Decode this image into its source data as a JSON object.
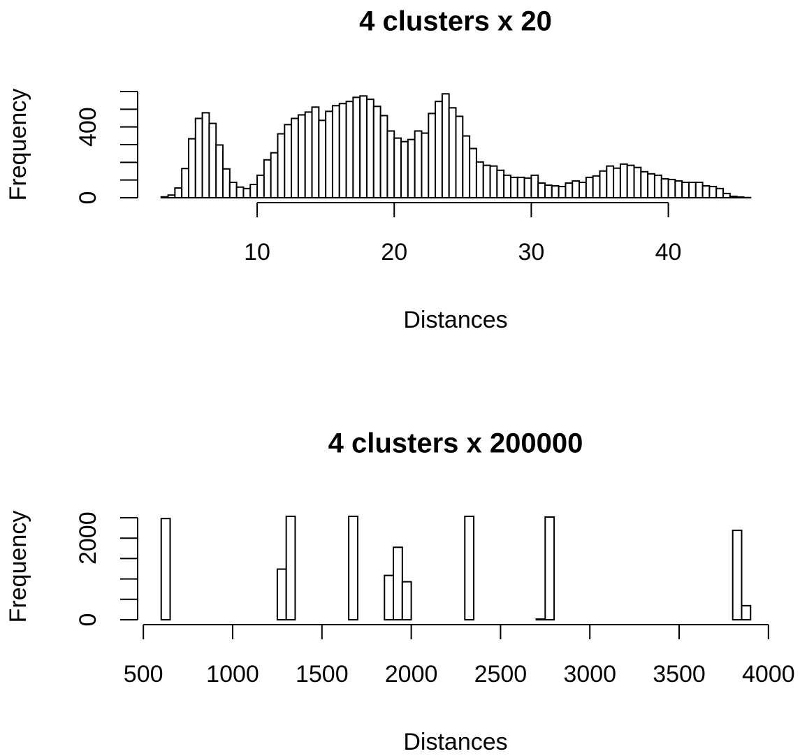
{
  "chart_data": [
    {
      "type": "histogram",
      "title": "4 clusters x 20",
      "xlabel": "Distances",
      "ylabel": "Frequency",
      "color": "#ffffff",
      "edgecolor": "#000000",
      "bins": [
        3,
        3.5,
        4,
        4.5,
        5,
        5.5,
        6,
        6.5,
        7,
        7.5,
        8,
        8.5,
        9,
        9.5,
        10,
        10.5,
        11,
        11.5,
        12,
        12.5,
        13,
        13.5,
        14,
        14.5,
        15,
        15.5,
        16,
        16.5,
        17,
        17.5,
        18,
        18.5,
        19,
        19.5,
        20,
        20.5,
        21,
        21.5,
        22,
        22.5,
        23,
        23.5,
        24,
        24.5,
        25,
        25.5,
        26,
        26.5,
        27,
        27.5,
        28,
        28.5,
        29,
        29.5,
        30,
        30.5,
        31,
        31.5,
        32,
        32.5,
        33,
        33.5,
        34,
        34.5,
        35,
        35.5,
        36,
        36.5,
        37,
        37.5,
        38,
        38.5,
        39,
        39.5,
        40,
        40.5,
        41,
        41.5,
        42,
        42.5,
        43,
        43.5,
        44,
        44.5,
        45,
        45.5,
        46
      ],
      "values": [
        5,
        15,
        55,
        165,
        333,
        448,
        480,
        420,
        298,
        163,
        87,
        60,
        52,
        75,
        127,
        214,
        254,
        361,
        413,
        448,
        468,
        484,
        512,
        437,
        488,
        520,
        532,
        544,
        567,
        575,
        556,
        516,
        464,
        377,
        337,
        317,
        329,
        377,
        365,
        476,
        544,
        587,
        508,
        460,
        349,
        278,
        202,
        183,
        179,
        155,
        127,
        115,
        115,
        111,
        127,
        83,
        71,
        67,
        63,
        83,
        95,
        87,
        115,
        123,
        151,
        179,
        167,
        190,
        183,
        171,
        147,
        135,
        127,
        107,
        103,
        95,
        87,
        87,
        87,
        67,
        63,
        52,
        24,
        8,
        4,
        1
      ],
      "xlim": [
        1.28,
        47.72
      ],
      "ylim": [
        0,
        600
      ],
      "xticks": [
        10,
        20,
        30,
        40
      ],
      "yticks": [
        0,
        {
          "value": 100,
          "label": null
        },
        {
          "value": 200,
          "label": null
        },
        {
          "value": 300,
          "label": null
        },
        400,
        {
          "value": 500,
          "label": null
        },
        {
          "value": 600,
          "label": null
        }
      ]
    },
    {
      "type": "histogram",
      "title": "4 clusters x 200000",
      "xlabel": "Distances",
      "ylabel": "Frequency",
      "color": "#ffffff",
      "edgecolor": "#000000",
      "bins": [
        600,
        650,
        700,
        750,
        800,
        850,
        900,
        950,
        1000,
        1050,
        1100,
        1150,
        1200,
        1250,
        1300,
        1350,
        1400,
        1450,
        1500,
        1550,
        1600,
        1650,
        1700,
        1750,
        1800,
        1850,
        1900,
        1950,
        2000,
        2050,
        2100,
        2150,
        2200,
        2250,
        2300,
        2350,
        2400,
        2450,
        2500,
        2550,
        2600,
        2650,
        2700,
        2750,
        2800,
        2850,
        2900,
        2950,
        3000,
        3050,
        3100,
        3150,
        3200,
        3250,
        3300,
        3350,
        3400,
        3450,
        3500,
        3550,
        3600,
        3650,
        3700,
        3750,
        3800,
        3850,
        3900
      ],
      "values": [
        2480,
        0,
        0,
        0,
        0,
        0,
        0,
        0,
        0,
        0,
        0,
        0,
        0,
        1241,
        2534,
        0,
        0,
        0,
        0,
        0,
        0,
        2534,
        0,
        0,
        0,
        1086,
        1776,
        931,
        0,
        0,
        0,
        0,
        0,
        0,
        2534,
        0,
        0,
        0,
        0,
        0,
        0,
        0,
        17,
        2517,
        0,
        0,
        0,
        0,
        0,
        0,
        0,
        0,
        0,
        0,
        0,
        0,
        0,
        0,
        0,
        0,
        0,
        0,
        0,
        0,
        2190,
        345
      ],
      "xlim": [
        468,
        4032
      ],
      "ylim": [
        0,
        2500
      ],
      "xticks": [
        500,
        1000,
        1500,
        2000,
        2500,
        3000,
        3500,
        4000
      ],
      "yticks": [
        0,
        {
          "value": 500,
          "label": null
        },
        {
          "value": 1000,
          "label": null
        },
        {
          "value": 1500,
          "label": null
        },
        2000,
        {
          "value": 2500,
          "label": null
        }
      ]
    }
  ]
}
